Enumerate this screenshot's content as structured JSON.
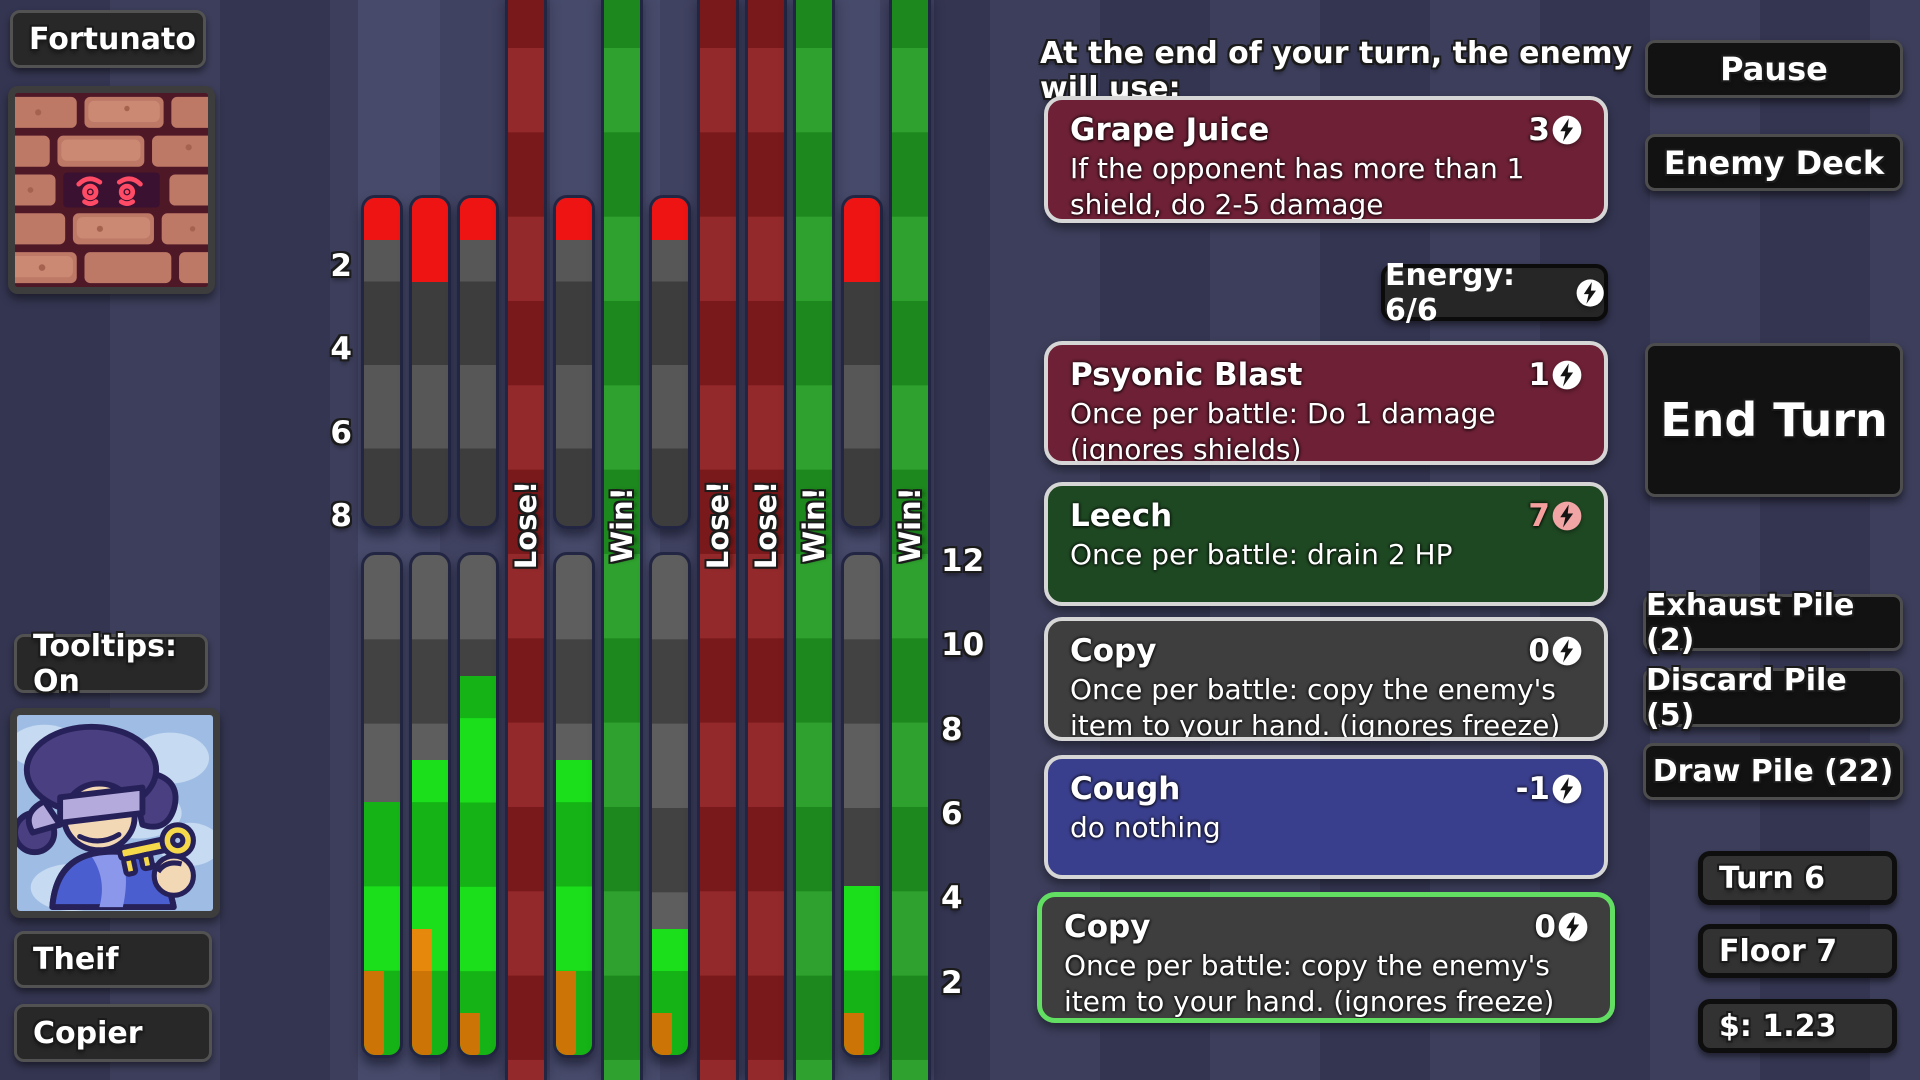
{
  "left_panel": {
    "enemy_name_label": "Fortunato",
    "tooltips_button": "Tooltips: On",
    "player_name_label": "Theif",
    "player_role_label": "Copier",
    "enemy_portrait": "brick-wall-with-angry-eyes",
    "player_portrait": "blindfolded-thief-holding-gold-key"
  },
  "chart_data": {
    "type": "bar",
    "description": "Battle forecast: 12 simulated outcome columns. Top bars = enemy bar (red damage from top, max 8). Bottom bars = player bar (green HP with orange overlay, max 12). Full columns are decided results.",
    "top_axis": {
      "labels": [
        2,
        4,
        6,
        8
      ],
      "max": 8
    },
    "bottom_axis": {
      "labels": [
        12,
        10,
        8,
        6,
        4,
        2
      ],
      "max": 12
    },
    "lose_text": "Lose!",
    "win_text": "Win!",
    "columns": [
      {
        "result": "open",
        "enemy_red": 1,
        "player_green": 6,
        "player_orange": 2
      },
      {
        "result": "open",
        "enemy_red": 2,
        "player_green": 7,
        "player_orange": 3
      },
      {
        "result": "open",
        "enemy_red": 1,
        "player_green": 9,
        "player_orange": 1
      },
      {
        "result": "lose"
      },
      {
        "result": "open",
        "enemy_red": 1,
        "player_green": 7,
        "player_orange": 2
      },
      {
        "result": "win"
      },
      {
        "result": "open",
        "enemy_red": 1,
        "player_green": 3,
        "player_orange": 1
      },
      {
        "result": "lose"
      },
      {
        "result": "lose"
      },
      {
        "result": "win"
      },
      {
        "result": "open",
        "enemy_red": 2,
        "player_green": 4,
        "player_orange": 1
      },
      {
        "result": "win"
      }
    ],
    "colors": {
      "red": "#ee1414",
      "green_light": "#1bdf1b",
      "green_dark": "#15b315",
      "orange": "#e5880b",
      "win_column": "#219b21",
      "lose_column": "#8d1d1f",
      "gray_light": "#575757",
      "gray_dark": "#3d3d3d"
    }
  },
  "intent": {
    "header": "At the end of your turn, the enemy will use:",
    "card": {
      "name": "Grape Juice",
      "cost": "3",
      "desc": "If the opponent has more than 1 shield, do 2-5 damage",
      "bg": "#6d2036"
    }
  },
  "energy": {
    "label": "Energy: 6/6"
  },
  "hand": [
    {
      "name": "Psyonic Blast",
      "cost": "1",
      "desc": "Once per battle: Do 1 damage (ignores shields)",
      "bg": "#6d2036",
      "cost_style": "white",
      "selected": false
    },
    {
      "name": "Leech",
      "cost": "7",
      "desc": "Once per battle: drain 2 HP",
      "bg": "#1e4822",
      "cost_style": "pink",
      "selected": false
    },
    {
      "name": "Copy",
      "cost": "0",
      "desc": "Once per battle: copy the enemy's item to your hand. (ignores freeze)",
      "bg": "#3e3e3e",
      "cost_style": "white",
      "selected": false
    },
    {
      "name": "Cough",
      "cost": "-1",
      "desc": "do nothing",
      "bg": "#3a3f8d",
      "cost_style": "white",
      "selected": false
    },
    {
      "name": "Copy",
      "cost": "0",
      "desc": "Once per battle: copy the enemy's item to your hand. (ignores freeze)",
      "bg": "#3e3e3e",
      "cost_style": "white",
      "selected": true
    }
  ],
  "right_panel": {
    "pause": "Pause",
    "enemy_deck": "Enemy Deck",
    "end_turn": "End Turn",
    "exhaust_pile": "Exhaust Pile (2)",
    "discard_pile": "Discard Pile (5)",
    "draw_pile": "Draw Pile (22)",
    "turn": "Turn 6",
    "floor": "Floor 7",
    "money": "$: 1.23"
  }
}
